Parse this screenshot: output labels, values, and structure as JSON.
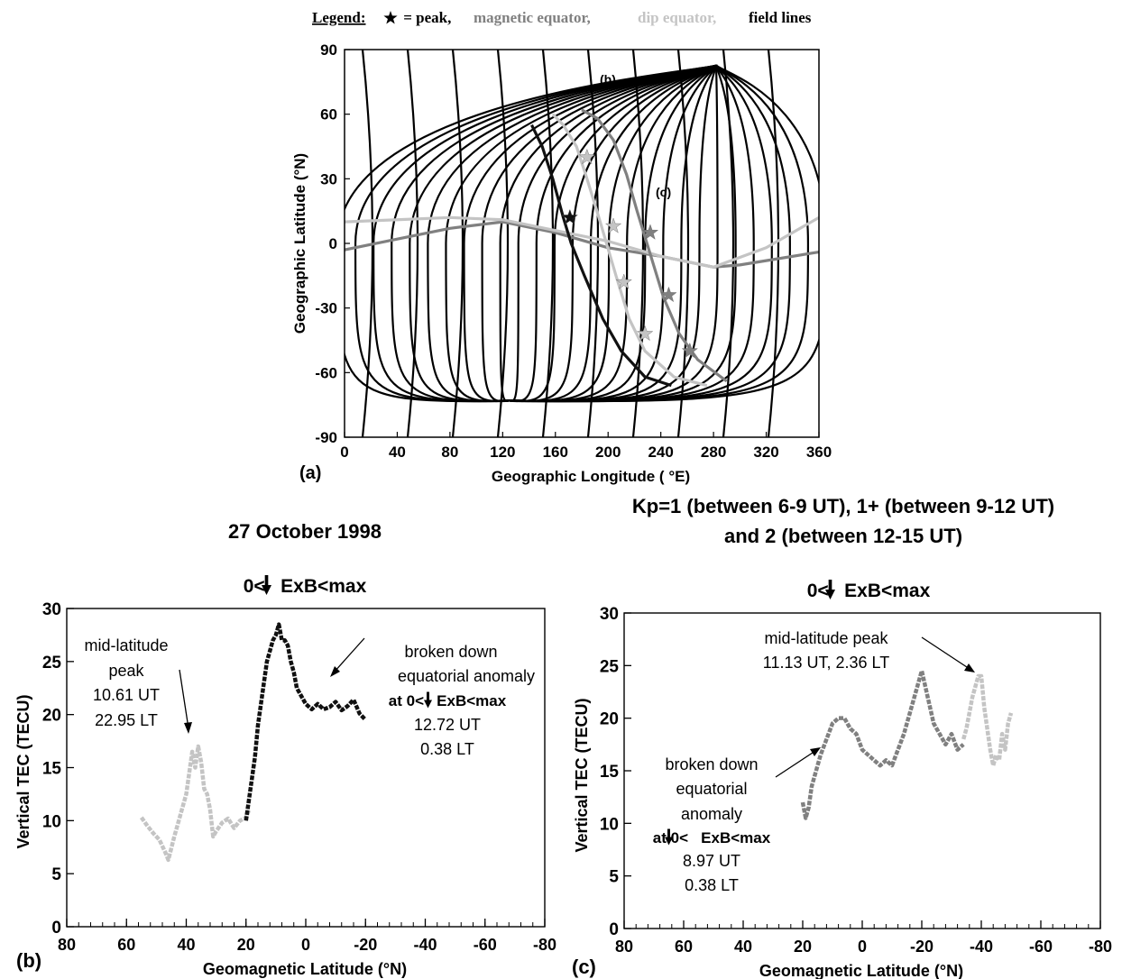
{
  "header": {
    "legend_label": "Legend:",
    "legend_rest": " = peak, ",
    "legend_mag": "magnetic equator,",
    "legend_dip": "dip equator,",
    "legend_field": "field lines",
    "date": "27 October 1998",
    "kp_line1": "Kp=1 (between 6-9 UT), 1+ (between 9-12 UT)",
    "kp_line2": "and 2 (between 12-15 UT)"
  },
  "colors": {
    "peak_black": "#111111",
    "dark_gray": "#808080",
    "light_gray": "#c4c4c4",
    "field_line": "#000000"
  },
  "chart_data": [
    {
      "type": "line",
      "panel_label": "(a)",
      "xlabel": "Geographic Longitude ( °E)",
      "ylabel": "Geographic Latitude (°N)",
      "xlim": [
        0,
        360
      ],
      "ylim": [
        -90,
        90
      ],
      "xticks": [
        "0",
        "40",
        "80",
        "120",
        "160",
        "200",
        "240",
        "280",
        "320",
        "360"
      ],
      "yticks": [
        "90",
        "60",
        "30",
        "0",
        "-30",
        "-60",
        "-90"
      ],
      "annotations": [
        "(b)",
        "(c)"
      ],
      "series": [
        {
          "color": "#808080",
          "x": [
            0,
            40,
            80,
            120,
            160,
            200,
            240,
            280,
            300,
            320,
            360
          ],
          "y": [
            -3,
            2,
            7,
            10,
            5,
            -2,
            -6,
            -11,
            -10,
            -8,
            -4
          ]
        },
        {
          "color": "#c4c4c4",
          "x": [
            0,
            40,
            80,
            120,
            160,
            200,
            240,
            280,
            320,
            360
          ],
          "y": [
            10,
            11,
            12,
            11,
            6,
            1,
            -6,
            -11,
            -2,
            12
          ]
        },
        {
          "color": "#111111",
          "x": [
            142,
            150,
            158,
            166,
            172,
            182,
            196,
            210,
            228,
            248
          ],
          "y": [
            55,
            45,
            30,
            12,
            0,
            -15,
            -35,
            -50,
            -62,
            -66
          ]
        },
        {
          "color": "#c4c4c4",
          "x": [
            158,
            166,
            176,
            184,
            194,
            206,
            216,
            228,
            250,
            275
          ],
          "y": [
            60,
            55,
            45,
            30,
            10,
            -15,
            -35,
            -50,
            -62,
            -66
          ]
        },
        {
          "color": "#808080",
          "x": [
            180,
            192,
            204,
            214,
            222,
            232,
            242,
            254,
            268,
            290
          ],
          "y": [
            62,
            58,
            48,
            32,
            15,
            -5,
            -25,
            -42,
            -54,
            -64
          ]
        }
      ],
      "peaks": [
        {
          "color": "#111111",
          "x": [
            171
          ],
          "y": [
            12
          ]
        },
        {
          "color": "#c4c4c4",
          "x": [
            184,
            204,
            212,
            228
          ],
          "y": [
            40,
            8,
            -18,
            -42
          ]
        },
        {
          "color": "#808080",
          "x": [
            232,
            246,
            262
          ],
          "y": [
            5,
            -24,
            -50
          ]
        }
      ]
    },
    {
      "type": "scatter",
      "panel_label": "(b)",
      "title": "0<   ExB<max",
      "xlabel": "Geomagnetic Latitude (°N)",
      "ylabel": "Vertical TEC (TECU)",
      "xlim": [
        80,
        -80
      ],
      "ylim": [
        0,
        30
      ],
      "xticks": [
        "80",
        "60",
        "40",
        "20",
        "0",
        "-20",
        "-40",
        "-60",
        "-80"
      ],
      "yticks": [
        "0",
        "5",
        "10",
        "15",
        "20",
        "25",
        "30"
      ],
      "annotations": [
        {
          "lines": [
            "mid-latitude",
            "peak",
            "10.61 UT",
            "22.95 LT"
          ]
        },
        {
          "lines": [
            "broken down",
            "equatorial anomaly",
            "at 0<   ExB<max",
            "12.72 UT",
            "0.38 LT"
          ]
        }
      ],
      "series": [
        {
          "color": "#c4c4c4",
          "x": [
            55,
            53,
            51,
            49,
            47,
            46,
            44,
            42,
            41,
            40,
            39,
            38,
            37,
            36,
            35,
            34,
            33,
            32,
            31,
            30,
            28,
            26,
            24,
            22,
            20,
            19
          ],
          "y": [
            10.3,
            9.5,
            8.8,
            8.2,
            7,
            6.3,
            8.5,
            10.5,
            11.5,
            12.5,
            14.5,
            16.5,
            15,
            17,
            15.5,
            13,
            12.5,
            11,
            8.5,
            9,
            9.8,
            10.2,
            9.3,
            10,
            10.3,
            11
          ]
        },
        {
          "color": "#111111",
          "x": [
            20,
            19,
            18,
            17,
            16,
            15,
            14,
            13,
            12,
            11,
            10,
            9,
            8,
            7,
            6,
            5,
            4,
            3,
            2,
            1,
            0,
            -2,
            -4,
            -6,
            -8,
            -10,
            -12,
            -14,
            -16,
            -18,
            -20
          ],
          "y": [
            10,
            12,
            14,
            16,
            19,
            21,
            23,
            25,
            26,
            27,
            27.5,
            28.5,
            27,
            27,
            26.5,
            25,
            24,
            22.5,
            22,
            21.5,
            21,
            20.5,
            21,
            20.5,
            20.7,
            21.2,
            20.4,
            20.8,
            21.4,
            20.1,
            19.5
          ]
        }
      ]
    },
    {
      "type": "scatter",
      "panel_label": "(c)",
      "title": "0<   ExB<max",
      "xlabel": "Geomagnetic Latitude (°N)",
      "ylabel": "Vertical TEC (TECU)",
      "xlim": [
        80,
        -80
      ],
      "ylim": [
        0,
        30
      ],
      "xticks": [
        "80",
        "60",
        "40",
        "20",
        "0",
        "-20",
        "-40",
        "-60",
        "-80"
      ],
      "yticks": [
        "0",
        "5",
        "10",
        "15",
        "20",
        "25",
        "30"
      ],
      "annotations": [
        {
          "lines": [
            "mid-latitude peak",
            "11.13 UT, 2.36 LT"
          ]
        },
        {
          "lines": [
            "broken down",
            "equatorial",
            "anomaly",
            "at 0<   ExB<max",
            "8.97 UT",
            "0.38 LT"
          ]
        }
      ],
      "series": [
        {
          "color": "#808080",
          "x": [
            20,
            19,
            18,
            17,
            16,
            15,
            14,
            12,
            10,
            8,
            6,
            4,
            2,
            0,
            -2,
            -4,
            -6,
            -8,
            -10,
            -12,
            -14,
            -16,
            -18,
            -20,
            -22,
            -24,
            -26,
            -28,
            -30,
            -32,
            -34
          ],
          "y": [
            12,
            10.5,
            11.5,
            13.5,
            14.5,
            15.5,
            16.5,
            18,
            19.5,
            20,
            20,
            19,
            18.5,
            17,
            16.5,
            16,
            15.5,
            16,
            15.5,
            17,
            18.5,
            20.5,
            22.5,
            24.5,
            22,
            19.5,
            18.5,
            17.5,
            18.5,
            17,
            17.5
          ]
        },
        {
          "color": "#c4c4c4",
          "x": [
            -34,
            -35,
            -36,
            -37,
            -38,
            -39,
            -40,
            -41,
            -42,
            -43,
            -44,
            -45,
            -46,
            -47,
            -48,
            -49,
            -50
          ],
          "y": [
            18,
            19,
            20.5,
            22,
            23,
            24,
            24,
            21,
            19,
            17,
            15.5,
            16.5,
            16,
            18.5,
            17,
            19.5,
            20.5
          ]
        }
      ]
    }
  ]
}
